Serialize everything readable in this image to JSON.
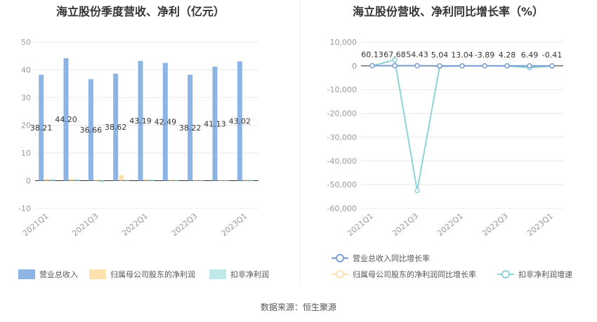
{
  "source_text": "数据来源：恒生聚源",
  "chart_data": [
    {
      "type": "bar",
      "title": "海立股份季度营收、净利（亿元）",
      "categories": [
        "2021Q1",
        "2021Q2",
        "2021Q3",
        "2021Q4",
        "2022Q1",
        "2022Q2",
        "2022Q3",
        "2022Q4",
        "2023Q1"
      ],
      "x_tick_labels": [
        "2021Q1",
        "2021Q3",
        "2022Q1",
        "2022Q3",
        "2023Q1"
      ],
      "ylim": [
        -10,
        50
      ],
      "y_ticks": [
        -10,
        0,
        10,
        20,
        30,
        40,
        50
      ],
      "grid": true,
      "legend_position": "bottom",
      "series": [
        {
          "name": "营业总收入",
          "color": "#8eb4e3",
          "values": [
            38.21,
            44.2,
            36.66,
            38.62,
            43.19,
            42.49,
            38.22,
            41.13,
            43.02
          ],
          "labels": [
            "38.21",
            "44.20",
            "36.66",
            "38.62",
            "43.19",
            "42.49",
            "38.22",
            "41.13",
            "43.02"
          ]
        },
        {
          "name": "归属母公司股东的净利润",
          "color": "#fde2b0",
          "values": [
            0.6,
            0.7,
            0.3,
            2.0,
            0.6,
            0.4,
            0.2,
            0.2,
            0.3
          ]
        },
        {
          "name": "扣非净利润",
          "color": "#bfe8ea",
          "values": [
            0.6,
            0.7,
            -0.6,
            0.3,
            0.5,
            0.3,
            0.2,
            0.2,
            0.3
          ]
        }
      ]
    },
    {
      "type": "line",
      "title": "海立股份营收、净利同比增长率（%）",
      "categories": [
        "2021Q1",
        "2021Q2",
        "2021Q3",
        "2021Q4",
        "2022Q1",
        "2022Q2",
        "2022Q3",
        "2022Q4",
        "2023Q1"
      ],
      "x_tick_labels": [
        "2021Q1",
        "2021Q3",
        "2022Q1",
        "2022Q3",
        "2023Q1"
      ],
      "ylim": [
        -60000,
        10000
      ],
      "y_ticks": [
        -60000,
        -50000,
        -40000,
        -30000,
        -20000,
        -10000,
        0,
        10000
      ],
      "y_tick_labels": [
        "-60,000",
        "-50,000",
        "-40,000",
        "-30,000",
        "-20,000",
        "-10,000",
        "0",
        "10,000"
      ],
      "grid": true,
      "legend_position": "bottom",
      "series": [
        {
          "name": "营业总收入同比增长率",
          "color": "#7a9fd6",
          "values": [
            60.13,
            67.68,
            54.43,
            5.04,
            13.04,
            -3.89,
            4.28,
            6.49,
            -0.41
          ],
          "labels": [
            "60.13",
            "67.68",
            "54.43",
            "5.04",
            "13.04",
            "-3.89",
            "4.28",
            "6.49",
            "-0.41"
          ]
        },
        {
          "name": "归属母公司股东的净利润同比增长率",
          "color": "#fde2b0",
          "values": [
            0,
            0,
            0,
            -300,
            0,
            0,
            0,
            -200,
            0
          ]
        },
        {
          "name": "扣非净利润增速",
          "color": "#8fd3d8",
          "values": [
            0,
            2500,
            -52500,
            -200,
            0,
            0,
            0,
            -800,
            -100
          ]
        }
      ]
    }
  ]
}
